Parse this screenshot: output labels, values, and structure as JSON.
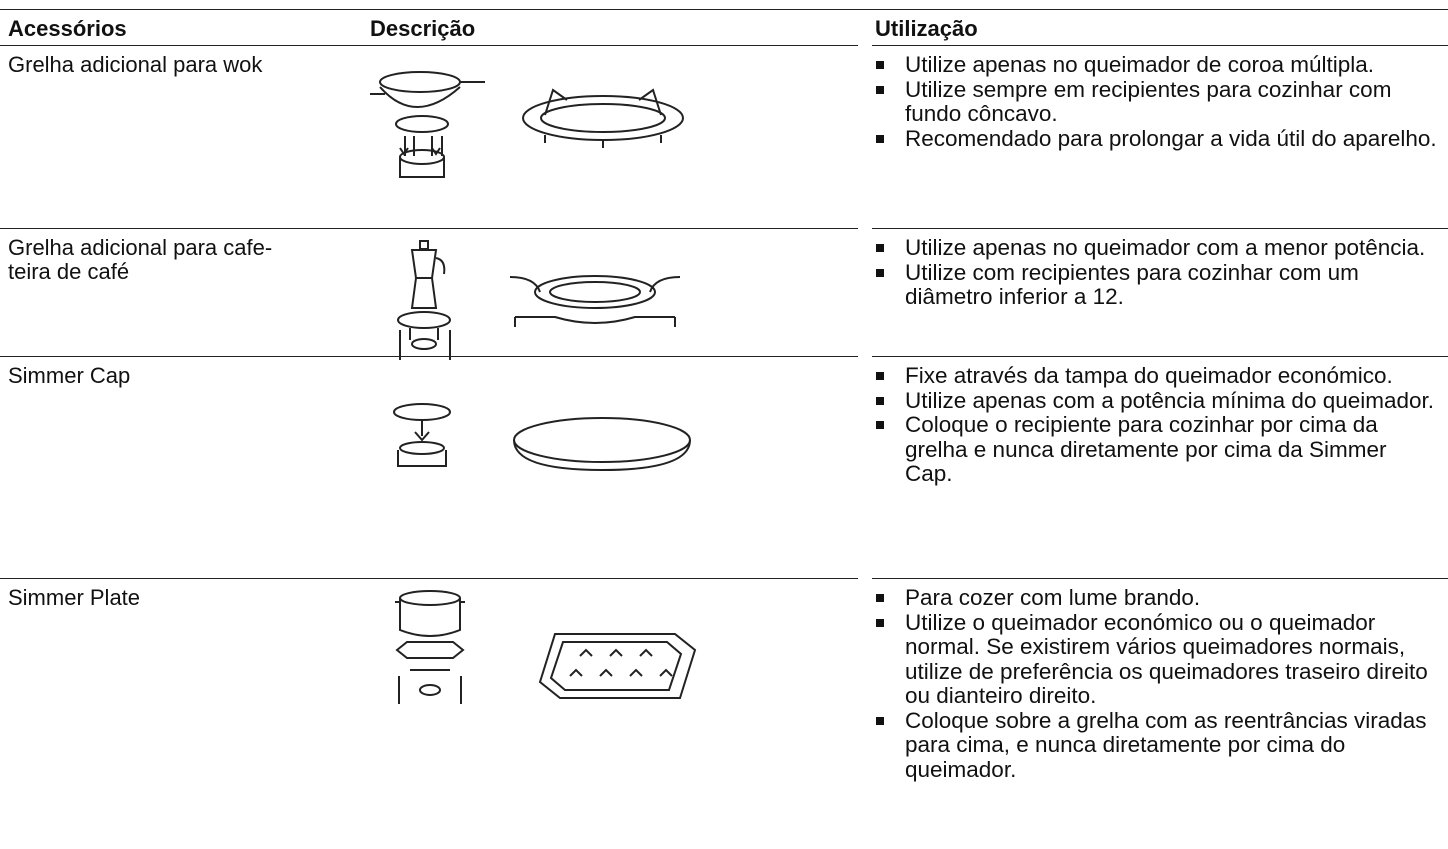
{
  "table": {
    "headers": [
      "Acessórios",
      "Descrição",
      "Utilização"
    ],
    "rows": [
      {
        "name": [
          "Grelha adicional para wok"
        ],
        "usage": [
          "Utilize apenas no queimador de coroa múltipla.",
          "Utilize sempre em recipientes para cozinhar com fundo côncavo.",
          "Recomendado para prolongar a vida útil do aparelho."
        ]
      },
      {
        "name": [
          "Grelha adicional para cafe-",
          "teira de café"
        ],
        "usage": [
          "Utilize apenas no queimador com a menor potência.",
          "Utilize com recipientes para cozinhar com um diâmetro inferior a 12."
        ]
      },
      {
        "name": [
          "Simmer Cap"
        ],
        "usage": [
          "Fixe através da tampa do queimador económico.",
          "Utilize apenas com a potência mínima do queimador.",
          "Coloque o recipiente para cozinhar por cima da grelha e nunca diretamente por cima da Simmer Cap."
        ]
      },
      {
        "name": [
          "Simmer Plate"
        ],
        "usage": [
          "Para cozer com lume brando.",
          "Utilize o queimador económico ou o queimador normal. Se existirem vários queimadores normais, utilize de preferência os queimadores traseiro direito ou dianteiro direito.",
          "Coloque sobre a grelha com as reentrâncias viradas para cima, e nunca diretamente por cima do queimador."
        ]
      }
    ]
  }
}
